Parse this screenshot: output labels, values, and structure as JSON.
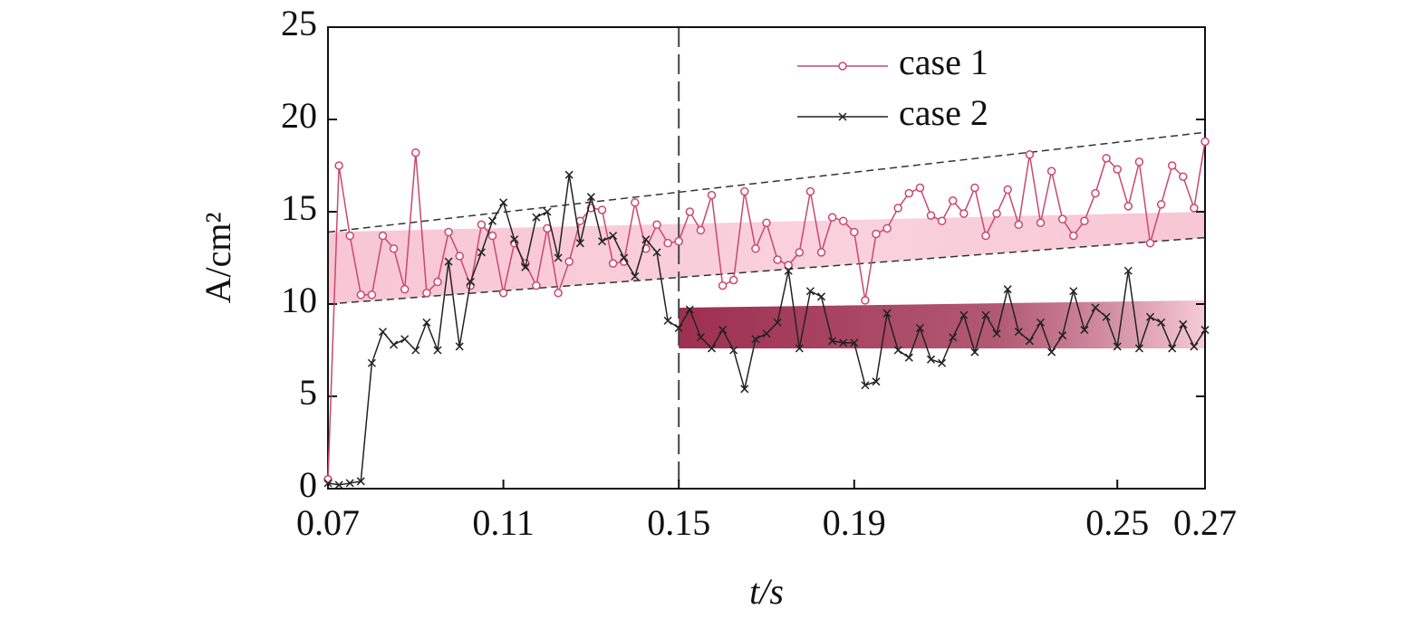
{
  "chart_data": {
    "type": "line",
    "xlabel": "t/s",
    "ylabel": "A/cm²",
    "x": [
      0.07,
      0.0725,
      0.075,
      0.0775,
      0.08,
      0.0825,
      0.085,
      0.0875,
      0.09,
      0.0925,
      0.095,
      0.0975,
      0.1,
      0.1025,
      0.105,
      0.1075,
      0.11,
      0.1125,
      0.115,
      0.1175,
      0.12,
      0.1225,
      0.125,
      0.1275,
      0.13,
      0.1325,
      0.135,
      0.1375,
      0.14,
      0.1425,
      0.145,
      0.1475,
      0.15,
      0.1525,
      0.155,
      0.1575,
      0.16,
      0.1625,
      0.165,
      0.1675,
      0.17,
      0.1725,
      0.175,
      0.1775,
      0.18,
      0.1825,
      0.185,
      0.1875,
      0.19,
      0.1925,
      0.195,
      0.1975,
      0.2,
      0.2025,
      0.205,
      0.2075,
      0.21,
      0.2125,
      0.215,
      0.2175,
      0.22,
      0.2225,
      0.225,
      0.2275,
      0.23,
      0.2325,
      0.235,
      0.2375,
      0.24,
      0.2425,
      0.245,
      0.2475,
      0.25,
      0.2525,
      0.255,
      0.2575,
      0.26,
      0.2625,
      0.265,
      0.2675,
      0.27
    ],
    "series": [
      {
        "name": "case 1",
        "color": "#c9486e",
        "marker": "circle",
        "values": [
          0.5,
          17.5,
          13.7,
          10.5,
          10.5,
          13.7,
          13.0,
          10.8,
          18.2,
          10.6,
          11.2,
          13.9,
          12.6,
          11.0,
          14.3,
          13.7,
          10.6,
          13.3,
          12.2,
          11.0,
          14.1,
          10.6,
          12.3,
          14.5,
          15.2,
          15.1,
          12.2,
          12.3,
          15.5,
          13.0,
          14.3,
          13.3,
          13.4,
          15.0,
          14.0,
          15.9,
          11.0,
          11.3,
          16.1,
          13.0,
          14.4,
          12.4,
          12.1,
          12.8,
          16.1,
          12.8,
          14.7,
          14.5,
          13.9,
          10.2,
          13.8,
          14.1,
          15.2,
          16.0,
          16.3,
          14.8,
          14.5,
          15.6,
          14.9,
          16.3,
          13.7,
          14.9,
          16.2,
          14.3,
          18.1,
          14.4,
          17.2,
          14.6,
          13.7,
          14.5,
          16.0,
          17.9,
          17.3,
          15.3,
          17.7,
          13.3,
          15.4,
          17.5,
          16.9,
          15.2,
          18.8
        ]
      },
      {
        "name": "case 2",
        "color": "#222222",
        "marker": "cross",
        "values": [
          0.3,
          0.2,
          0.3,
          0.4,
          6.8,
          8.5,
          7.8,
          8.1,
          7.5,
          9.0,
          7.5,
          12.3,
          7.7,
          11.2,
          12.8,
          14.5,
          15.5,
          13.5,
          12.0,
          14.7,
          15.0,
          12.5,
          17.0,
          13.3,
          15.8,
          13.4,
          13.7,
          12.5,
          11.5,
          13.5,
          12.8,
          9.1,
          8.7,
          9.7,
          8.2,
          7.6,
          8.6,
          7.5,
          5.4,
          8.1,
          8.4,
          9.0,
          11.8,
          7.6,
          10.7,
          10.4,
          8.0,
          7.9,
          7.9,
          5.6,
          5.8,
          9.5,
          7.5,
          7.1,
          8.7,
          7.0,
          6.8,
          8.2,
          9.4,
          7.4,
          9.4,
          8.4,
          10.8,
          8.5,
          8.0,
          9.0,
          7.4,
          8.3,
          10.7,
          8.6,
          9.8,
          9.3,
          7.7,
          11.8,
          7.6,
          9.3,
          9.0,
          7.6,
          8.9,
          7.7,
          8.6
        ]
      }
    ],
    "xlim": [
      0.07,
      0.27
    ],
    "xticks": [
      0.07,
      0.11,
      0.15,
      0.19,
      0.25,
      0.27
    ],
    "ylim": [
      0,
      25
    ],
    "yticks": [
      0,
      5,
      10,
      15,
      20,
      25
    ],
    "grid": false,
    "legend": "top",
    "reference_x": 0.15,
    "trend_lines": [
      {
        "x": [
          0.07,
          0.27
        ],
        "y": [
          13.9,
          19.3
        ]
      },
      {
        "x": [
          0.07,
          0.27
        ],
        "y": [
          10.0,
          13.6
        ]
      }
    ],
    "bands": [
      {
        "x": [
          0.07,
          0.27
        ],
        "lower": [
          10.0,
          13.6
        ],
        "upper": [
          13.9,
          15.0
        ],
        "color": "#f8c6d5",
        "fade": "#f8c6d5"
      },
      {
        "x": [
          0.15,
          0.27
        ],
        "lower": [
          7.6,
          7.6
        ],
        "upper": [
          9.8,
          10.2
        ],
        "color": "#9e2f50",
        "fade": "#f6cbd8"
      }
    ]
  }
}
